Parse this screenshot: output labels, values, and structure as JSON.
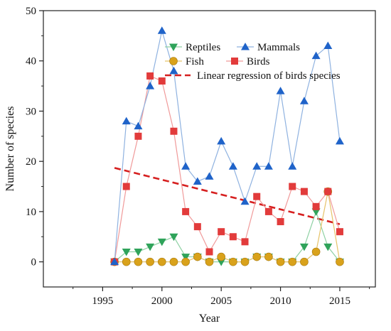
{
  "chart_data": {
    "type": "line",
    "xlabel": "Year",
    "ylabel": "Number of species",
    "xlim": [
      1990,
      2018
    ],
    "ylim": [
      -5,
      50
    ],
    "x_ticks": [
      1995,
      2000,
      2005,
      2010,
      2015
    ],
    "y_ticks": [
      0,
      10,
      20,
      30,
      40,
      50
    ],
    "legend_position": "top-right",
    "x": [
      1996,
      1997,
      1998,
      1999,
      2000,
      2001,
      2002,
      2003,
      2004,
      2005,
      2006,
      2007,
      2008,
      2009,
      2010,
      2011,
      2012,
      2013,
      2014,
      2015
    ],
    "series": [
      {
        "name": "Reptiles",
        "marker": "triangle-down",
        "color": "#2fa35a",
        "line_color": "#8fd1a4",
        "values": [
          0,
          2,
          2,
          3,
          4,
          5,
          1,
          1,
          0,
          0,
          0,
          0,
          1,
          1,
          0,
          0,
          3,
          10,
          3,
          0
        ]
      },
      {
        "name": "Mammals",
        "marker": "triangle-up",
        "color": "#1f63c9",
        "line_color": "#8fb2e0",
        "values": [
          0,
          28,
          27,
          35,
          46,
          38,
          19,
          16,
          17,
          24,
          19,
          12,
          19,
          19,
          34,
          19,
          32,
          41,
          43,
          24
        ]
      },
      {
        "name": "Fish",
        "marker": "circle",
        "color": "#d9a21b",
        "line_color": "#e6c36a",
        "values": [
          0,
          0,
          0,
          0,
          0,
          0,
          0,
          1,
          0,
          1,
          0,
          0,
          1,
          1,
          0,
          0,
          0,
          2,
          14,
          0
        ]
      },
      {
        "name": "Birds",
        "marker": "square",
        "color": "#e23b3b",
        "line_color": "#f09a9a",
        "values": [
          0,
          15,
          25,
          37,
          36,
          26,
          10,
          7,
          2,
          6,
          5,
          4,
          13,
          10,
          8,
          15,
          14,
          11,
          14,
          6
        ]
      }
    ],
    "regression": {
      "name": "Linear regression of birds species",
      "color": "#d62020",
      "x": [
        1996,
        2015
      ],
      "y": [
        18.7,
        7.5
      ]
    }
  }
}
